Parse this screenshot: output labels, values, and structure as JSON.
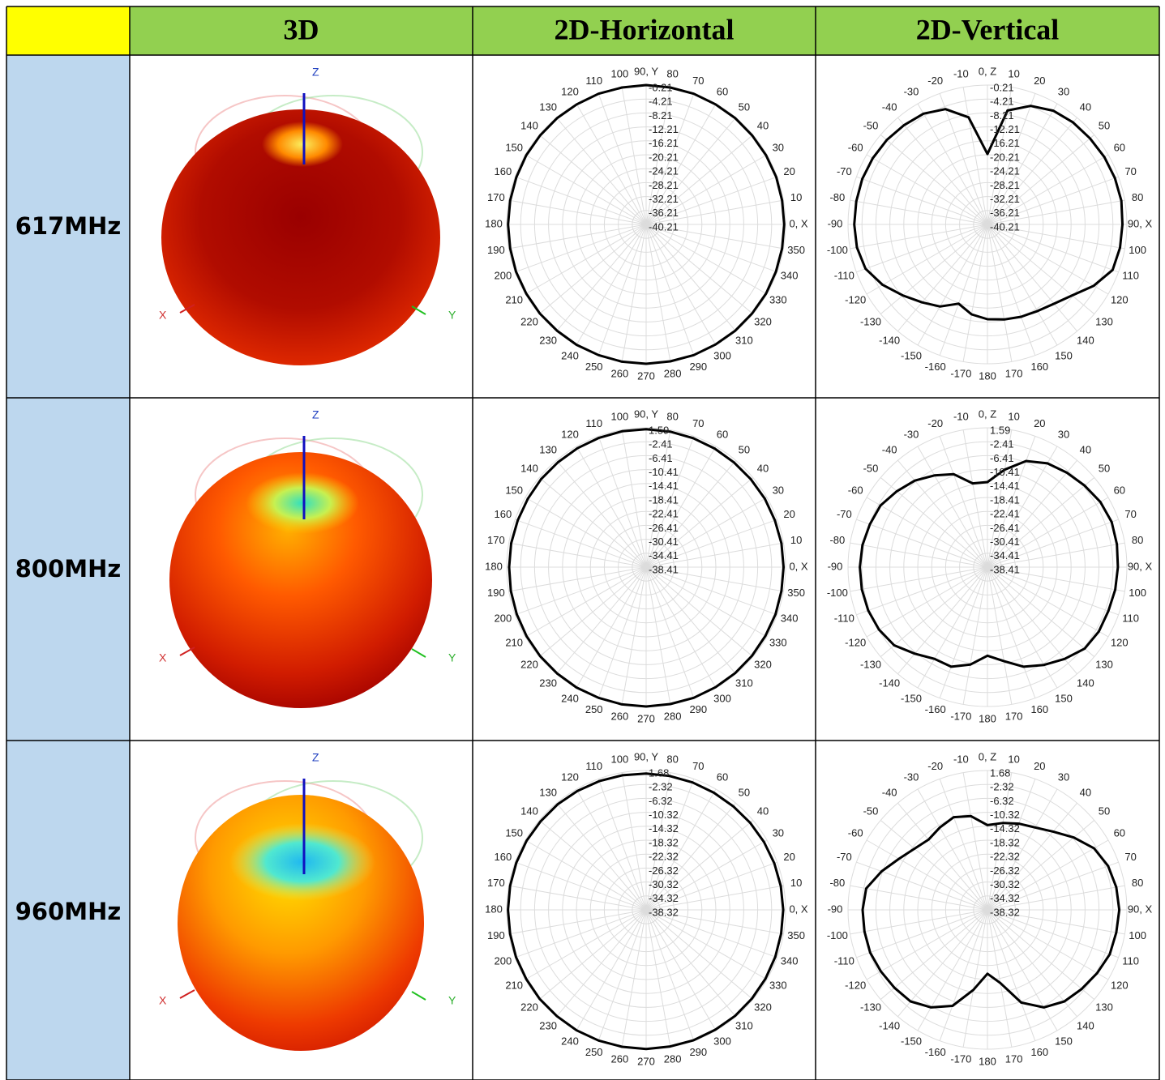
{
  "header": [
    "3D",
    "2D-Horizontal",
    "2D-Vertical"
  ],
  "axis_labels": {
    "z": "Z",
    "x": "X",
    "y": "Y"
  },
  "horizontal_angles": [
    "0, X",
    "10",
    "20",
    "30",
    "40",
    "50",
    "60",
    "70",
    "80",
    "90, Y",
    "100",
    "110",
    "120",
    "130",
    "140",
    "150",
    "160",
    "170",
    "180",
    "190",
    "200",
    "210",
    "220",
    "230",
    "240",
    "250",
    "260",
    "270",
    "280",
    "290",
    "300",
    "310",
    "320",
    "330",
    "340",
    "350"
  ],
  "vertical_angles": [
    "0, Z",
    "10",
    "20",
    "30",
    "40",
    "50",
    "60",
    "70",
    "80",
    "90, X",
    "100",
    "110",
    "120",
    "130",
    "140",
    "150",
    "160",
    "170",
    "180",
    "-170",
    "-160",
    "-150",
    "-140",
    "-130",
    "-120",
    "-110",
    "-100",
    "-90",
    "-80",
    "-70",
    "-60",
    "-50",
    "-40",
    "-30",
    "-20",
    "-10"
  ],
  "rows": [
    {
      "frequency": "617MHz",
      "scale": [
        -0.21,
        -4.21,
        -8.21,
        -12.21,
        -16.21,
        -20.21,
        -24.21,
        -28.21,
        -32.21,
        -36.21,
        -40.21
      ],
      "horizontal": [
        -0.6,
        -0.6,
        -0.5,
        -0.5,
        -0.5,
        -0.4,
        -0.4,
        -0.3,
        -0.3,
        -0.2,
        -0.3,
        -0.3,
        -0.4,
        -0.4,
        -0.5,
        -0.5,
        -0.6,
        -0.6,
        -0.6,
        -0.6,
        -0.5,
        -0.5,
        -0.4,
        -0.4,
        -0.3,
        -0.3,
        -0.2,
        -0.2,
        -0.3,
        -0.3,
        -0.4,
        -0.4,
        -0.5,
        -0.5,
        -0.6,
        -0.6
      ],
      "vertical": [
        -20,
        -7,
        -4,
        -2.5,
        -2,
        -1.8,
        -1.5,
        -1.3,
        -1.2,
        -1.5,
        -1.6,
        -2,
        -5,
        -8.5,
        -10.5,
        -11.5,
        -12,
        -12.5,
        -13,
        -14,
        -16,
        -13,
        -11,
        -8.5,
        -5.5,
        -3,
        -2.2,
        -2,
        -2,
        -2,
        -2.2,
        -2.5,
        -3,
        -3.5,
        -5,
        -9
      ]
    },
    {
      "frequency": "800MHz",
      "scale": [
        1.59,
        -2.41,
        -6.41,
        -10.41,
        -14.41,
        -18.41,
        -22.41,
        -26.41,
        -30.41,
        -34.41,
        -38.41
      ],
      "horizontal": [
        1.0,
        1.0,
        0.9,
        0.9,
        0.8,
        0.8,
        0.9,
        1.0,
        1.1,
        1.2,
        1.2,
        1.1,
        1.0,
        0.9,
        0.9,
        0.8,
        0.8,
        0.9,
        0.9,
        1.0,
        1.1,
        1.2,
        1.3,
        1.4,
        1.5,
        1.5,
        1.6,
        1.6,
        1.5,
        1.5,
        1.4,
        1.3,
        1.2,
        1.1,
        1.1,
        1.0
      ],
      "vertical": [
        -14,
        -10,
        -6,
        -4,
        -3,
        -2,
        -1,
        -0.5,
        -0.7,
        -1,
        -1.2,
        -1.5,
        -1.5,
        -2,
        -4,
        -6,
        -8,
        -11,
        -13,
        -10,
        -8,
        -8,
        -6,
        -3.5,
        -2.5,
        -2,
        -1.8,
        -1.8,
        -2,
        -2.5,
        -3,
        -4.5,
        -6,
        -8,
        -10,
        -14
      ]
    },
    {
      "frequency": "960MHz",
      "scale": [
        1.68,
        -2.32,
        -6.32,
        -10.32,
        -14.32,
        -18.32,
        -22.32,
        -26.32,
        -30.32,
        -34.32,
        -38.32
      ],
      "horizontal": [
        1.0,
        0.9,
        0.8,
        0.7,
        0.6,
        0.5,
        0.5,
        0.6,
        0.7,
        0.8,
        0.9,
        1.0,
        1.1,
        1.2,
        1.2,
        1.3,
        1.3,
        1.3,
        1.3,
        1.3,
        1.4,
        1.4,
        1.5,
        1.5,
        1.6,
        1.6,
        1.6,
        1.6,
        1.5,
        1.5,
        1.4,
        1.4,
        1.3,
        1.2,
        1.1,
        1.0
      ],
      "vertical": [
        -14,
        -13,
        -12,
        -11,
        -9,
        -6,
        -3,
        -1.5,
        -0.8,
        -0.5,
        -0.8,
        -1,
        -2,
        -3,
        -4,
        -6,
        -10,
        -17,
        -20,
        -15,
        -9,
        -6,
        -4,
        -3.5,
        -3,
        -2.5,
        -2.5,
        -2.5,
        -3,
        -6,
        -9,
        -11,
        -12,
        -11,
        -10,
        -11
      ]
    }
  ]
}
